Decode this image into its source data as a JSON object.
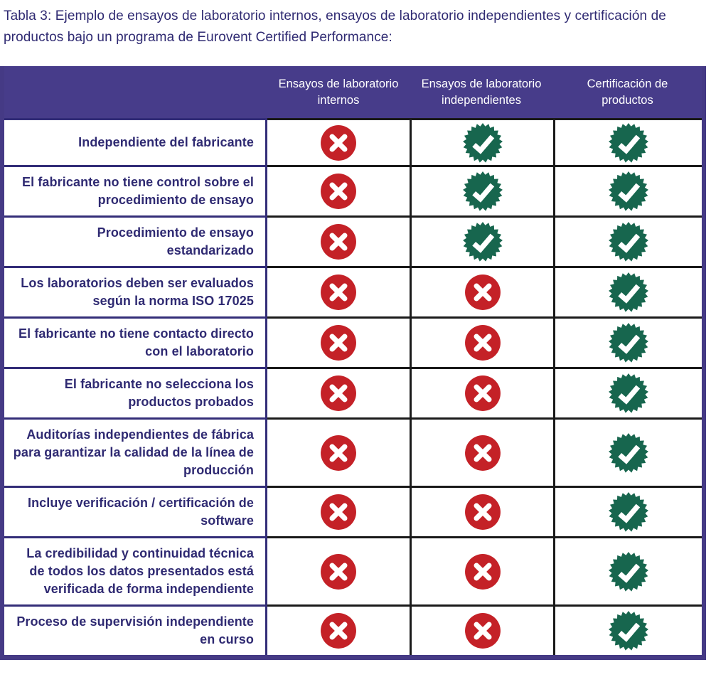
{
  "title": "Tabla 3: Ejemplo de ensayos de laboratorio internos, ensayos de laboratorio independientes y certificación de productos bajo un programa de Eurovent Certified Performance:",
  "colors": {
    "header_bg": "#473c8a",
    "header_text": "#ffffff",
    "border_purple": "#453a85",
    "grid_navy": "#332d78",
    "grid_black": "#1a1a1a",
    "text_navy": "#2f2a72",
    "cross_red": "#c42127",
    "check_green": "#17664e",
    "page_bg": "#ffffff"
  },
  "icons": {
    "cross": "cross-icon",
    "check": "check-seal-icon"
  },
  "table": {
    "columns": [
      "",
      "Ensayos de laboratorio internos",
      "Ensayos de laboratorio independientes",
      "Certificación de productos"
    ],
    "rows": [
      {
        "label": "Independiente del fabricante",
        "values": [
          "cross",
          "check",
          "check"
        ]
      },
      {
        "label": "El fabricante no tiene control sobre el procedimiento de ensayo",
        "values": [
          "cross",
          "check",
          "check"
        ]
      },
      {
        "label": "Procedimiento de ensayo estandarizado",
        "values": [
          "cross",
          "check",
          "check"
        ]
      },
      {
        "label": "Los laboratorios deben ser evaluados según la norma ISO 17025",
        "values": [
          "cross",
          "cross",
          "check"
        ]
      },
      {
        "label": "El fabricante no tiene contacto directo con el laboratorio",
        "values": [
          "cross",
          "cross",
          "check"
        ]
      },
      {
        "label": "El fabricante no selecciona los productos probados",
        "values": [
          "cross",
          "cross",
          "check"
        ]
      },
      {
        "label": "Auditorías independientes de fábrica para garantizar la calidad de la línea de producción",
        "values": [
          "cross",
          "cross",
          "check"
        ]
      },
      {
        "label": "Incluye verificación / certificación de software",
        "values": [
          "cross",
          "cross",
          "check"
        ]
      },
      {
        "label": "La credibilidad y continuidad técnica de todos los datos presentados está verificada de forma independiente",
        "values": [
          "cross",
          "cross",
          "check"
        ]
      },
      {
        "label": "Proceso de supervisión independiente en curso",
        "values": [
          "cross",
          "cross",
          "check"
        ]
      }
    ]
  }
}
